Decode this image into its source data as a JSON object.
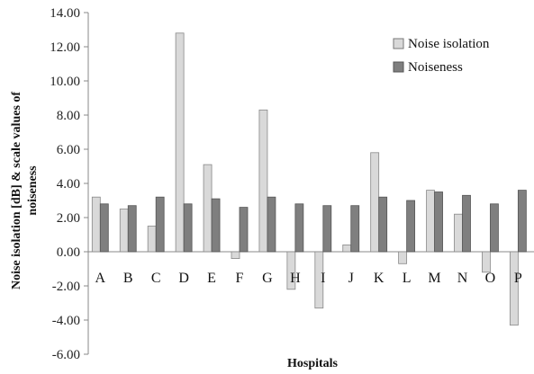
{
  "chart_data": {
    "type": "bar",
    "categories": [
      "A",
      "B",
      "C",
      "D",
      "E",
      "F",
      "G",
      "H",
      "I",
      "J",
      "K",
      "L",
      "M",
      "N",
      "O",
      "P"
    ],
    "series": [
      {
        "name": "Noise isolation",
        "color": "#d9d9d9",
        "values": [
          3.2,
          2.5,
          1.5,
          12.8,
          5.1,
          -0.4,
          8.3,
          -2.2,
          -3.3,
          0.4,
          5.8,
          -0.7,
          3.6,
          2.2,
          -1.2,
          -4.3
        ]
      },
      {
        "name": "Noiseness",
        "color": "#7f7f7f",
        "values": [
          2.8,
          2.7,
          3.2,
          2.8,
          3.1,
          2.6,
          3.2,
          2.8,
          2.7,
          2.7,
          3.2,
          3.0,
          3.5,
          3.3,
          2.8,
          3.6
        ]
      }
    ],
    "xlabel": "Hospitals",
    "ylabel_lines": [
      "Noise isolation [dB] & scale values of",
      "noiseness"
    ],
    "ylim": [
      -6,
      14
    ],
    "yticks": [
      -6,
      -4,
      -2,
      0,
      2,
      4,
      6,
      8,
      10,
      12,
      14
    ],
    "ytick_labels": [
      "-6.00",
      "-4.00",
      "-2.00",
      "0.00",
      "2.00",
      "4.00",
      "6.00",
      "8.00",
      "10.00",
      "12.00",
      "14.00"
    ],
    "legend_position": "top-right",
    "grid": false
  }
}
